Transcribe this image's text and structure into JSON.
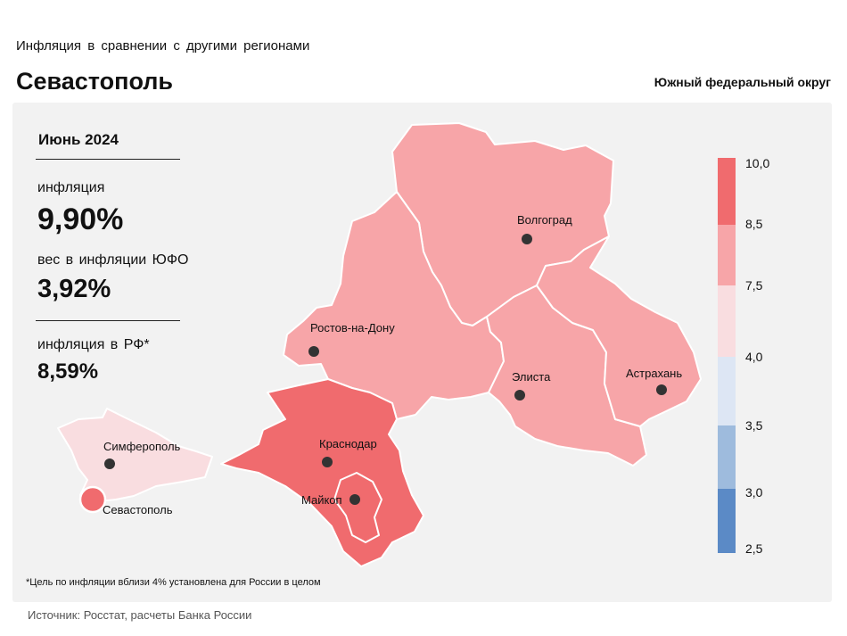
{
  "header": {
    "subtitle": "Инфляция в сравнении с другими регионами",
    "title": "Севастополь",
    "district": "Южный федеральный округ"
  },
  "info": {
    "month": "Июнь 2024",
    "inflation_label": "инфляция",
    "inflation_value": "9,90%",
    "weight_label": "вес в инфляции ЮФО",
    "weight_value": "3,92%",
    "rf_label": "инфляция в РФ*",
    "rf_value": "8,59%"
  },
  "cities": {
    "volgograd": "Волгоград",
    "rostov": "Ростов-на-Дону",
    "elista": "Элиста",
    "astrakhan": "Астрахань",
    "krasnodar": "Краснодар",
    "maykop": "Майкоп",
    "simferopol": "Симферополь",
    "sevastopol": "Севастополь"
  },
  "legend": {
    "labels": [
      "10,0",
      "8,5",
      "7,5",
      "4,0",
      "3,5",
      "3,0",
      "2,5"
    ],
    "colors": [
      "#f06b6e",
      "#f7a5a8",
      "#f9dde0",
      "#dde6f4",
      "#9ebbdd",
      "#5b8ac6"
    ]
  },
  "colors": {
    "high": "#f06b6e",
    "mid": "#f7a5a8",
    "low": "#f9dde0",
    "panel": "#f2f2f2"
  },
  "footnote": "*Цель по инфляции вблизи 4% установлена для России в целом",
  "source": "Источник: Росстат, расчеты Банка России"
}
